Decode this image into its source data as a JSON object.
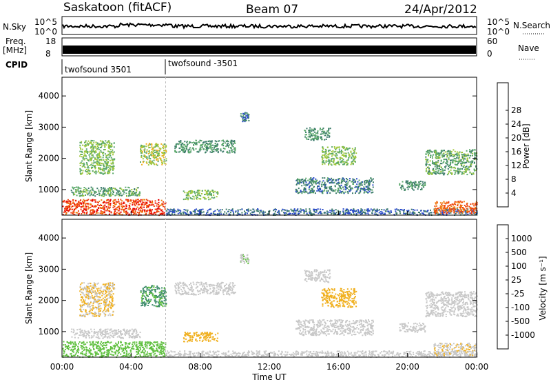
{
  "header": {
    "station": "Saskatoon (fitACF)",
    "beam": "Beam 07",
    "date": "24/Apr/2012"
  },
  "summary": {
    "nsky_label": "N.Sky",
    "nsky_ticks": [
      "10^5",
      "10^0"
    ],
    "nsearch_label": "N.Search",
    "nsearch_ticks": [
      "10^5",
      "10^0"
    ],
    "freq_label": "Freq.",
    "freq_unit": "[MHz]",
    "freq_ticks": [
      "18",
      "8"
    ],
    "nave_label": "Nave",
    "nave_ticks": [
      "60",
      "0"
    ],
    "cpid_label": "CPID",
    "cpid_segments": [
      {
        "start_hour": 0,
        "end_hour": 6,
        "label": "twofsound 3501"
      },
      {
        "start_hour": 6,
        "end_hour": 24,
        "label": "twofsound -3501"
      }
    ]
  },
  "chart_data": [
    {
      "type": "heatmap",
      "name": "power",
      "xlabel": "",
      "ylabel": "Slant Range [km]",
      "xlim": [
        0,
        24
      ],
      "ylim": [
        180,
        4600
      ],
      "yticks": [
        1000,
        2000,
        3000,
        4000
      ],
      "colorbar": {
        "label": "Power [dB]",
        "min": 0,
        "max": 32,
        "ticks": [
          "4",
          "8",
          "12",
          "16",
          "20",
          "24",
          "28"
        ],
        "colors": [
          "#0000ff",
          "#2a4bc9",
          "#3b7a6a",
          "#5aa86a",
          "#9fc83a",
          "#f0b020",
          "#f07d10",
          "#f04010",
          "#e80000"
        ]
      },
      "echo_regions": [
        {
          "t": [
            0.0,
            6.0
          ],
          "r": [
            200,
            700
          ],
          "level": 28
        },
        {
          "t": [
            6.0,
            24.0
          ],
          "r": [
            200,
            400
          ],
          "level": 6
        },
        {
          "t": [
            21.5,
            24.0
          ],
          "r": [
            250,
            650
          ],
          "level": 26
        },
        {
          "t": [
            0.5,
            4.5
          ],
          "r": [
            800,
            1100
          ],
          "level": 12
        },
        {
          "t": [
            1.0,
            3.0
          ],
          "r": [
            1500,
            2600
          ],
          "level": 14
        },
        {
          "t": [
            4.5,
            6.0
          ],
          "r": [
            1800,
            2500
          ],
          "level": 16
        },
        {
          "t": [
            6.5,
            10.0
          ],
          "r": [
            2200,
            2600
          ],
          "level": 10
        },
        {
          "t": [
            7.0,
            9.0
          ],
          "r": [
            700,
            1000
          ],
          "level": 14
        },
        {
          "t": [
            10.3,
            10.8
          ],
          "r": [
            3200,
            3500
          ],
          "level": 8
        },
        {
          "t": [
            13.5,
            18.0
          ],
          "r": [
            900,
            1400
          ],
          "level": 8
        },
        {
          "t": [
            15.0,
            17.0
          ],
          "r": [
            1800,
            2400
          ],
          "level": 14
        },
        {
          "t": [
            14.0,
            15.5
          ],
          "r": [
            2600,
            3000
          ],
          "level": 10
        },
        {
          "t": [
            19.5,
            21.0
          ],
          "r": [
            1000,
            1300
          ],
          "level": 10
        },
        {
          "t": [
            21.0,
            24.0
          ],
          "r": [
            1500,
            2300
          ],
          "level": 12
        }
      ]
    },
    {
      "type": "heatmap",
      "name": "velocity",
      "xlabel": "Time UT",
      "ylabel": "Slant Range [km]",
      "xlim": [
        0,
        24
      ],
      "ylim": [
        180,
        4600
      ],
      "xticks": [
        "00:00",
        "04:00",
        "08:00",
        "12:00",
        "16:00",
        "20:00",
        "00:00"
      ],
      "yticks": [
        1000,
        2000,
        3000,
        4000
      ],
      "colorbar": {
        "label": "Velocity [m s⁻¹]",
        "min": -1500,
        "max": 1500,
        "ticks": [
          "1000",
          "500",
          "100",
          "25",
          "-25",
          "-100",
          "-500",
          "-1000"
        ],
        "colors": [
          "#2040c0",
          "#2f6fb0",
          "#3b8a6a",
          "#60c040",
          "#c8c8c8",
          "#f0b020",
          "#f08010",
          "#f05010",
          "#e80000"
        ]
      },
      "echo_regions": [
        {
          "t": [
            0.0,
            6.0
          ],
          "r": [
            200,
            700
          ],
          "v": 300
        },
        {
          "t": [
            6.0,
            24.0
          ],
          "r": [
            200,
            400
          ],
          "v": -80
        },
        {
          "t": [
            21.5,
            24.0
          ],
          "r": [
            250,
            650
          ],
          "v": -150
        },
        {
          "t": [
            0.5,
            4.5
          ],
          "r": [
            800,
            1100
          ],
          "v": 50
        },
        {
          "t": [
            1.0,
            3.0
          ],
          "r": [
            1500,
            2600
          ],
          "v": -200
        },
        {
          "t": [
            4.5,
            6.0
          ],
          "r": [
            1800,
            2500
          ],
          "v": 600
        },
        {
          "t": [
            6.5,
            10.0
          ],
          "r": [
            2200,
            2600
          ],
          "v": 0
        },
        {
          "t": [
            7.0,
            9.0
          ],
          "r": [
            700,
            1000
          ],
          "v": -300
        },
        {
          "t": [
            10.3,
            10.8
          ],
          "r": [
            3200,
            3500
          ],
          "v": 120
        },
        {
          "t": [
            13.5,
            18.0
          ],
          "r": [
            900,
            1400
          ],
          "v": -20
        },
        {
          "t": [
            15.0,
            17.0
          ],
          "r": [
            1800,
            2400
          ],
          "v": -400
        },
        {
          "t": [
            14.0,
            15.5
          ],
          "r": [
            2600,
            3000
          ],
          "v": 0
        },
        {
          "t": [
            19.5,
            21.0
          ],
          "r": [
            1000,
            1300
          ],
          "v": 10
        },
        {
          "t": [
            21.0,
            24.0
          ],
          "r": [
            1500,
            2300
          ],
          "v": 10
        }
      ]
    }
  ]
}
